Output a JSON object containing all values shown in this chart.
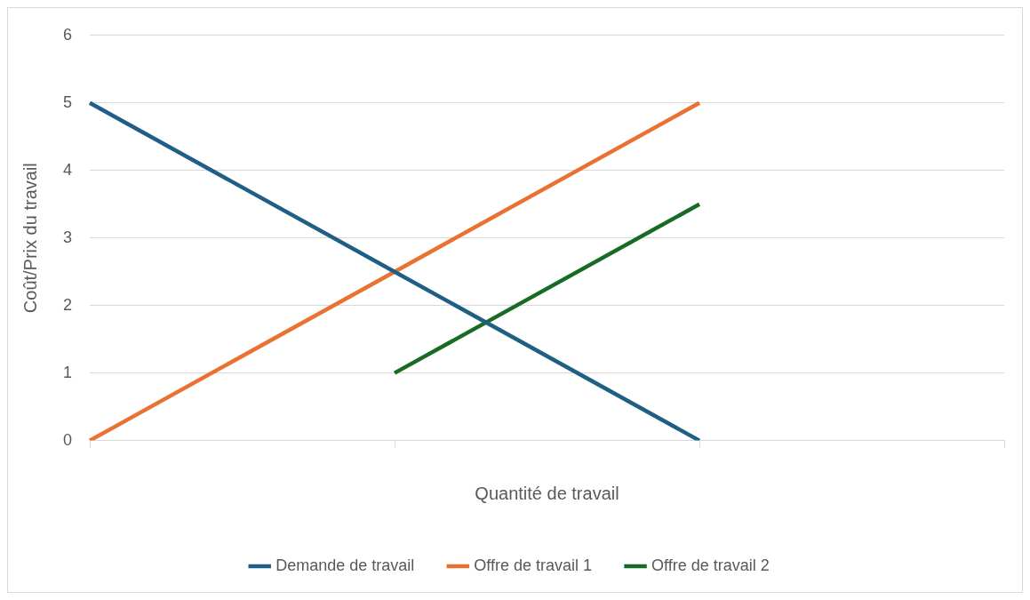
{
  "chart_data": {
    "type": "line",
    "xlabel": "Quantité de travail",
    "ylabel": "Coût/Prix du travail",
    "categories": [
      null,
      null,
      null,
      null
    ],
    "series": [
      {
        "name": "Demande de travail",
        "color": "#1f5f85",
        "values": [
          5,
          2.5,
          0,
          null
        ]
      },
      {
        "name": "Offre de travail 1",
        "color": "#e97132",
        "values": [
          0,
          2.5,
          5,
          null
        ]
      },
      {
        "name": "Offre de travail 2",
        "color": "#196b24",
        "values": [
          null,
          1,
          3.5,
          null
        ]
      }
    ],
    "ylim": [
      0,
      6
    ],
    "yticks": [
      0,
      1,
      2,
      3,
      4,
      5,
      6
    ],
    "grid": "y",
    "legend": "bottom",
    "marker": "none",
    "line_style": "solid"
  }
}
